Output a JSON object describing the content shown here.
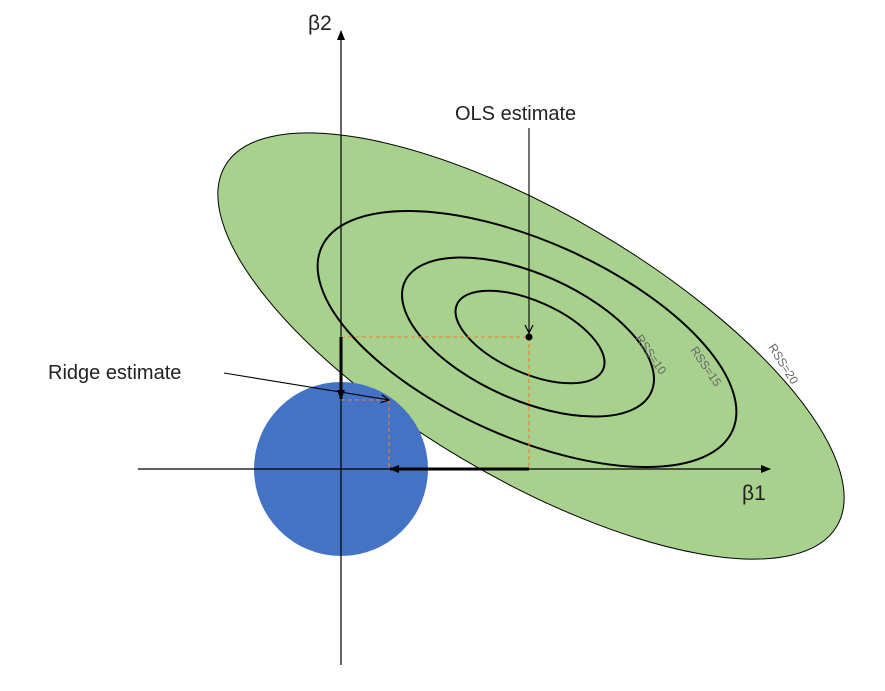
{
  "diagram": {
    "axes": {
      "x_label": "β1",
      "y_label": "β2"
    },
    "callouts": {
      "ols": "OLS estimate",
      "ridge": "Ridge estimate"
    },
    "contours": [
      {
        "label": "RSS=10"
      },
      {
        "label": "RSS=15"
      },
      {
        "label": "RSS=20"
      }
    ]
  },
  "colors": {
    "region_fill": "#a9d18e",
    "constraint_fill": "#4472c4",
    "projection_dash": "#ed7d31",
    "line": "#000000",
    "rss_label": "#666666"
  }
}
